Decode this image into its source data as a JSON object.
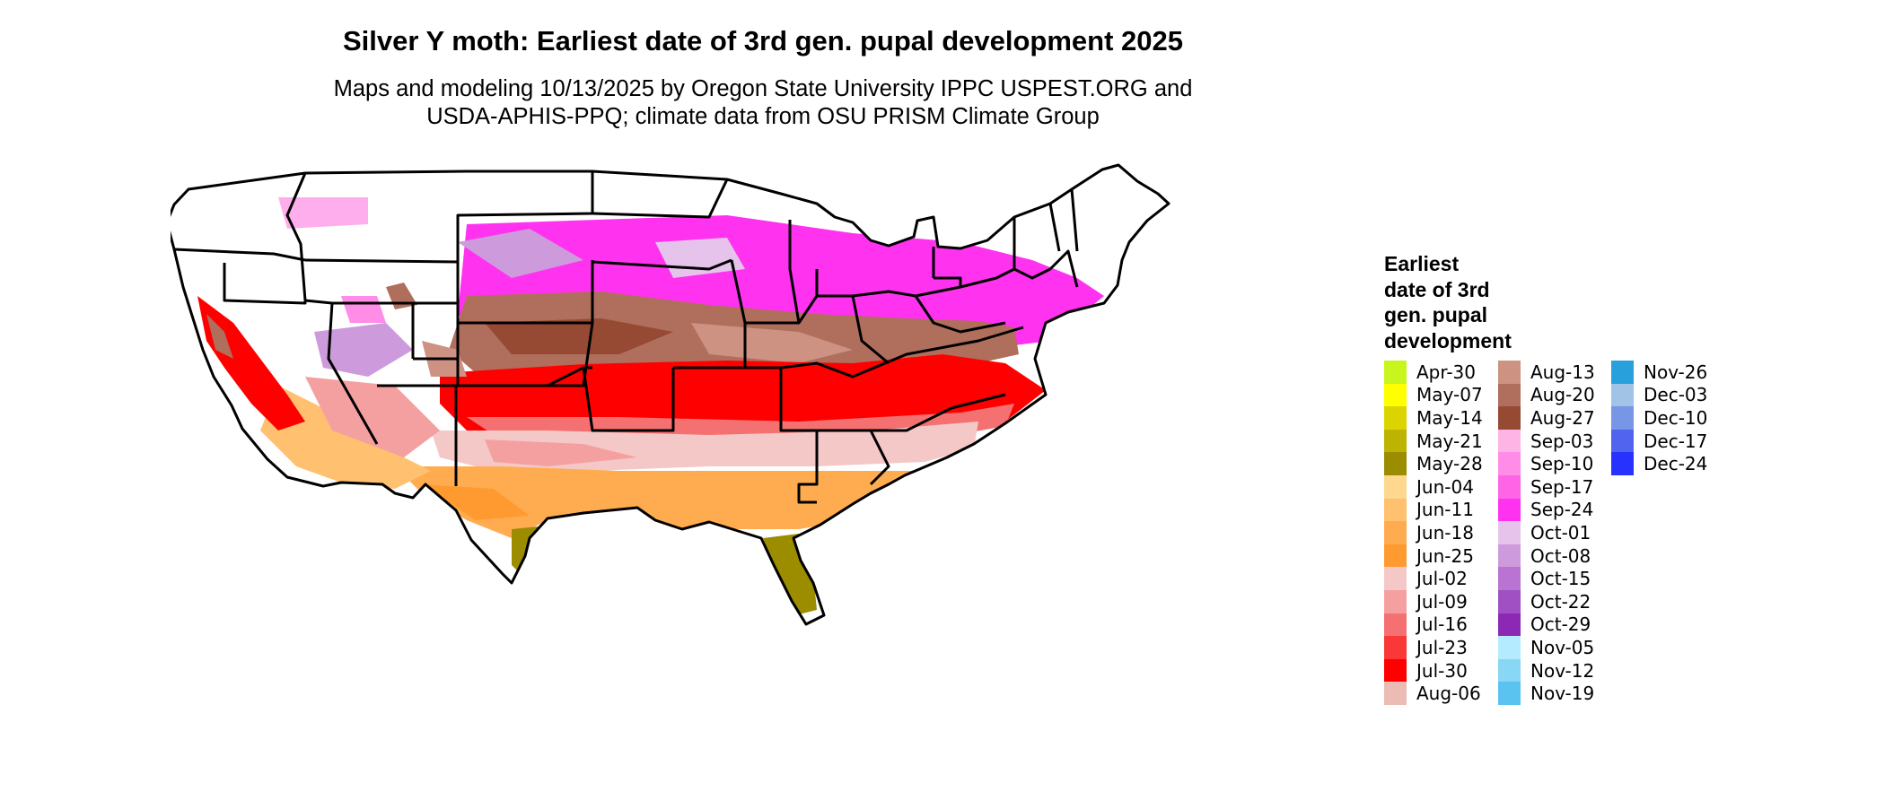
{
  "title": "Silver Y moth: Earliest date of 3rd gen. pupal development 2025",
  "subtitle": [
    "Maps and modeling 10/13/2025 by Oregon State University IPPC USPEST.ORG and",
    "USDA-APHIS-PPQ; climate data from OSU PRISM Climate Group"
  ],
  "legend": {
    "title_lines": [
      "Earliest",
      "date of 3rd",
      "gen. pupal",
      "development"
    ],
    "columns": [
      [
        {
          "label": "Apr-30",
          "color": "#c8f51e"
        },
        {
          "label": "May-07",
          "color": "#ffff00"
        },
        {
          "label": "May-14",
          "color": "#dcd400"
        },
        {
          "label": "May-21",
          "color": "#bcb400"
        },
        {
          "label": "May-28",
          "color": "#9c8c00"
        },
        {
          "label": "Jun-04",
          "color": "#ffd890"
        },
        {
          "label": "Jun-11",
          "color": "#ffc070"
        },
        {
          "label": "Jun-18",
          "color": "#ffac50"
        },
        {
          "label": "Jun-25",
          "color": "#ff9a30"
        },
        {
          "label": "Jul-02",
          "color": "#f5c8c8"
        },
        {
          "label": "Jul-09",
          "color": "#f5a0a0"
        },
        {
          "label": "Jul-16",
          "color": "#f57070"
        },
        {
          "label": "Jul-23",
          "color": "#fa3838"
        },
        {
          "label": "Jul-30",
          "color": "#ff0000"
        },
        {
          "label": "Aug-06",
          "color": "#ebbcb4"
        }
      ],
      [
        {
          "label": "Aug-13",
          "color": "#cd9282"
        },
        {
          "label": "Aug-20",
          "color": "#b06e5c"
        },
        {
          "label": "Aug-27",
          "color": "#964a34"
        },
        {
          "label": "Sep-03",
          "color": "#ffb4e6"
        },
        {
          "label": "Sep-10",
          "color": "#ff8ce6"
        },
        {
          "label": "Sep-17",
          "color": "#ff64e6"
        },
        {
          "label": "Sep-24",
          "color": "#ff32f0"
        },
        {
          "label": "Oct-01",
          "color": "#e6c3eb"
        },
        {
          "label": "Oct-08",
          "color": "#cd9bdc"
        },
        {
          "label": "Oct-15",
          "color": "#b973d2"
        },
        {
          "label": "Oct-22",
          "color": "#a050c3"
        },
        {
          "label": "Oct-29",
          "color": "#8c28b4"
        },
        {
          "label": "Nov-05",
          "color": "#b4ebff"
        },
        {
          "label": "Nov-12",
          "color": "#87d7f5"
        },
        {
          "label": "Nov-19",
          "color": "#5ac3f0"
        }
      ],
      [
        {
          "label": "Nov-26",
          "color": "#28a0dc"
        },
        {
          "label": "Dec-03",
          "color": "#a0c3e6"
        },
        {
          "label": "Dec-10",
          "color": "#7896e6"
        },
        {
          "label": "Dec-17",
          "color": "#5064f0"
        },
        {
          "label": "Dec-24",
          "color": "#2832ff"
        }
      ]
    ]
  }
}
